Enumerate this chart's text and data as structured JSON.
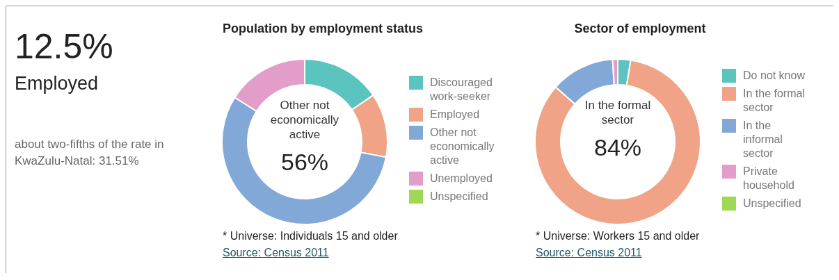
{
  "chart_data": [
    {
      "type": "other",
      "title": "12.5%",
      "subtitle": "Employed",
      "annotations": [
        "about two-fifths of the rate in KwaZulu-Natal: 31.51%"
      ]
    },
    {
      "type": "donut",
      "title": "Population by employment status",
      "categories": [
        "Discouraged work-seeker",
        "Employed",
        "Other not economically active",
        "Unemployed",
        "Unspecified"
      ],
      "values": [
        15.5,
        12.5,
        56,
        16,
        0
      ],
      "colors": [
        "#5bc4bf",
        "#f0a386",
        "#81a8d6",
        "#e39dcb",
        "#9fd852"
      ],
      "legend": "right",
      "annotations": [
        "Other not economically active",
        "56%",
        "* Universe: Individuals 15 and older",
        "Source: Census 2011"
      ]
    },
    {
      "type": "donut",
      "title": "Sector of employment",
      "categories": [
        "Do not know",
        "In the formal sector",
        "In the informal sector",
        "Private household",
        "Unspecified"
      ],
      "values": [
        2.5,
        84,
        12.5,
        1,
        0
      ],
      "colors": [
        "#5bc4bf",
        "#f0a386",
        "#81a8d6",
        "#e39dcb",
        "#9fd852"
      ],
      "legend": "right",
      "annotations": [
        "In the formal sector",
        "84%",
        "* Universe: Workers 15 and older",
        "Source: Census 2011"
      ]
    }
  ]
}
